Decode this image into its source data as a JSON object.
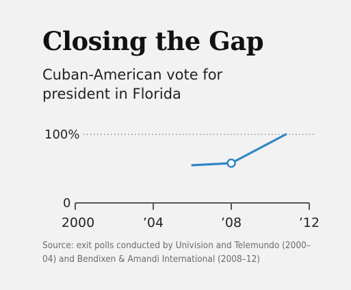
{
  "chart_data": {
    "type": "line",
    "title": "Closing the Gap",
    "subtitle": "Cuban-American vote for president in Florida",
    "x_tick_labels": [
      "2000",
      "’04",
      "’08",
      "’12"
    ],
    "x_ticks": [
      2000,
      2004,
      2008,
      2012
    ],
    "y_tick_labels": [
      "100%",
      "0"
    ],
    "y_ticks": [
      100,
      0
    ],
    "xlim": [
      2000,
      2012
    ],
    "ylim": [
      0,
      100
    ],
    "series": [
      {
        "x": [
          2006,
          2008,
          2010.8
        ],
        "values": [
          55,
          58,
          100
        ]
      }
    ],
    "markers": [
      {
        "x": 2008,
        "y": 58
      }
    ],
    "reference_lines": [
      {
        "y": 100,
        "style": "dotted"
      }
    ],
    "source": "Source: exit polls conducted by Univision and Telemundo (2000–04) and Bendixen & Amandi International (2008–12)",
    "colors": {
      "line": "#2f86c4",
      "axis": "#555555",
      "dotted": "#8a8a8a"
    }
  }
}
